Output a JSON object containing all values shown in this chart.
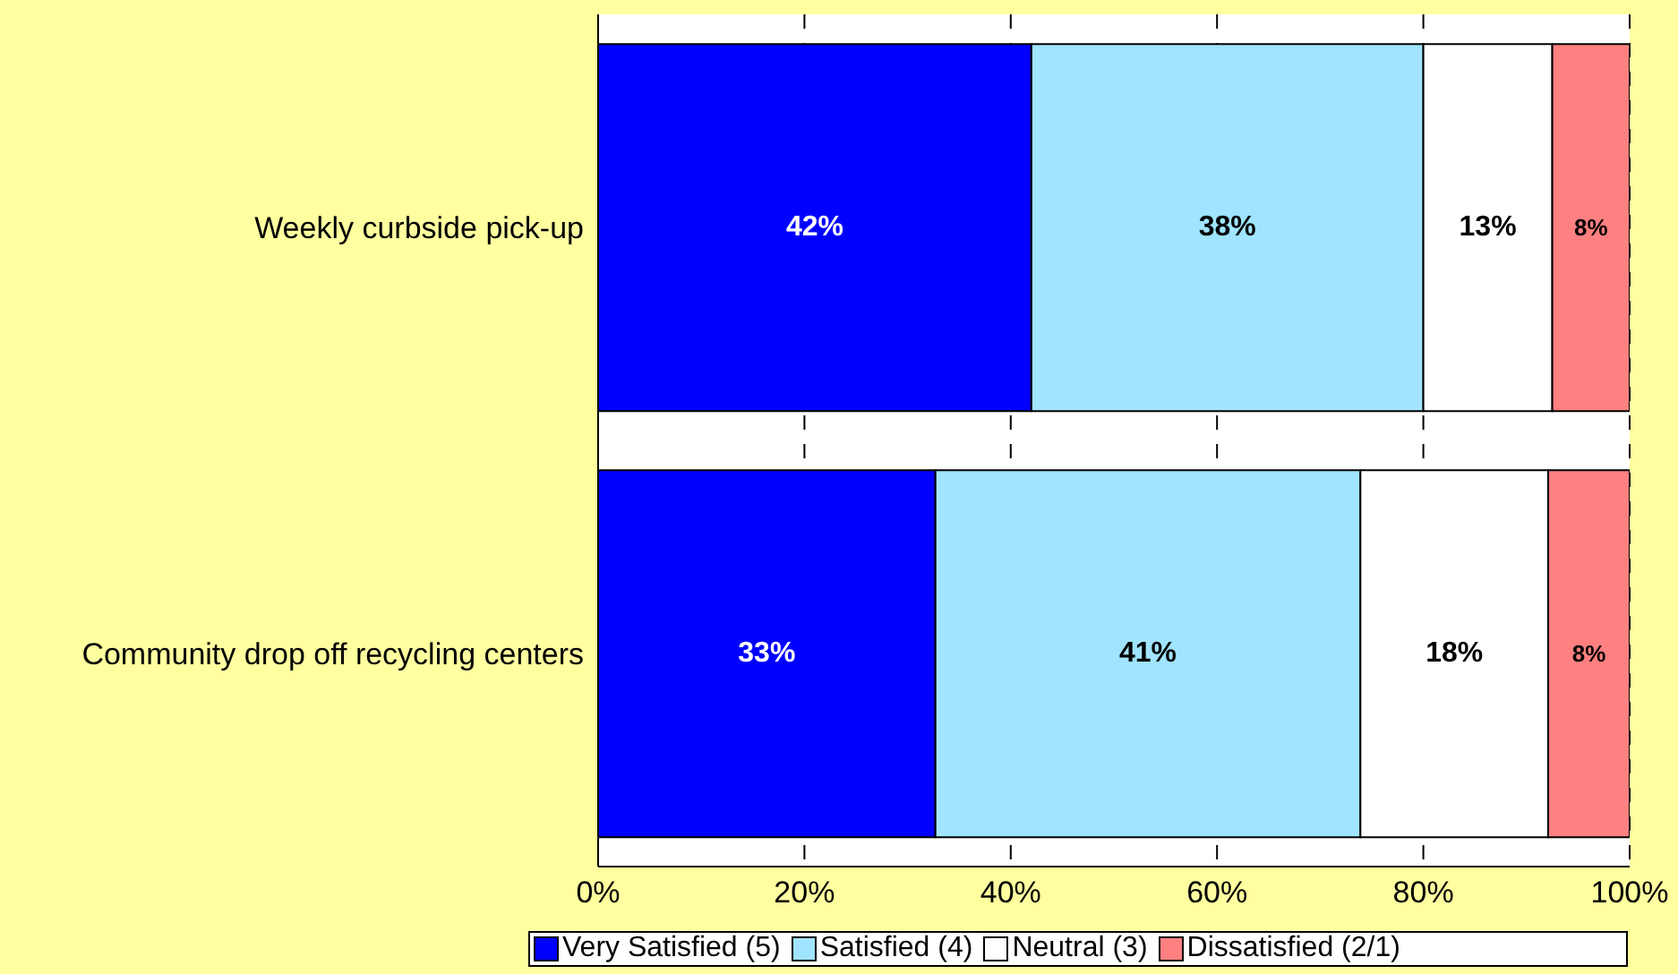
{
  "chart_data": {
    "type": "bar",
    "orientation": "horizontal",
    "stacked": true,
    "categories": [
      "Weekly curbside pick-up",
      "Community drop off recycling centers"
    ],
    "series": [
      {
        "name": "Very Satisfied (5)",
        "color": "#0000ff",
        "values": [
          42,
          32.7
        ],
        "value_labels": [
          "42%",
          "33%"
        ]
      },
      {
        "name": "Satisfied (4)",
        "color": "#a0e4ff",
        "values": [
          38,
          41.2
        ],
        "value_labels": [
          "38%",
          "41%"
        ]
      },
      {
        "name": "Neutral (3)",
        "color": "#ffffff",
        "values": [
          12.5,
          18.2
        ],
        "value_labels": [
          "13%",
          "18%"
        ]
      },
      {
        "name": "Dissatisfied (2/1)",
        "color": "#ff8080",
        "values": [
          7.5,
          7.9
        ],
        "value_labels": [
          "8%",
          "8%"
        ]
      }
    ],
    "xlim": [
      0,
      100
    ],
    "xticks": [
      {
        "value": 0,
        "label": "0%"
      },
      {
        "value": 20,
        "label": "20%"
      },
      {
        "value": 40,
        "label": "40%"
      },
      {
        "value": 60,
        "label": "60%"
      },
      {
        "value": 80,
        "label": "80%"
      },
      {
        "value": 100,
        "label": "100%"
      }
    ],
    "grid": "x",
    "legend": "bottom"
  }
}
